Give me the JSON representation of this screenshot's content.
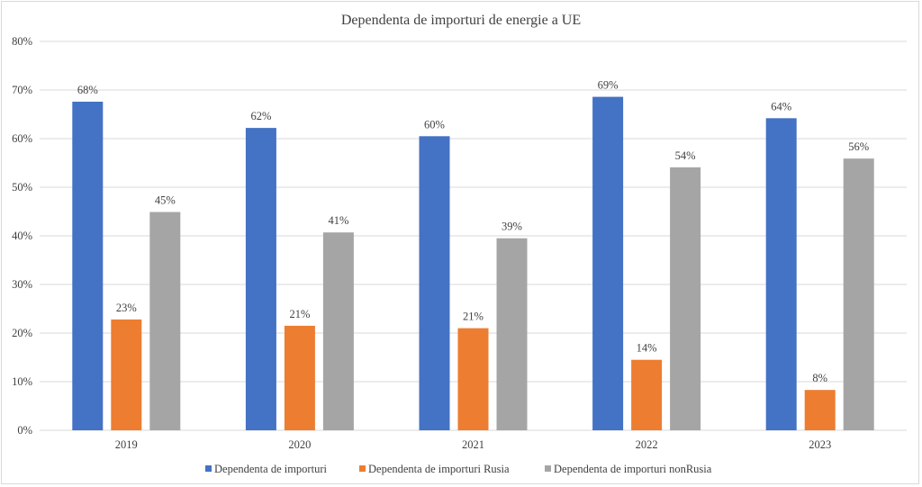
{
  "chart_data": {
    "type": "bar",
    "title": "Dependenta de importuri de energie a UE",
    "categories": [
      "2019",
      "2020",
      "2021",
      "2022",
      "2023"
    ],
    "series": [
      {
        "name": "Dependenta de importuri",
        "color": "#4472c4",
        "values": [
          0.676,
          0.622,
          0.605,
          0.686,
          0.642
        ],
        "labels": [
          "68%",
          "62%",
          "60%",
          "69%",
          "64%"
        ]
      },
      {
        "name": "Dependenta de importuri Rusia",
        "color": "#ed7d31",
        "values": [
          0.228,
          0.215,
          0.21,
          0.145,
          0.083
        ],
        "labels": [
          "23%",
          "21%",
          "21%",
          "14%",
          "8%"
        ]
      },
      {
        "name": "Dependenta de importuri nonRusia",
        "color": "#a5a5a5",
        "values": [
          0.449,
          0.407,
          0.395,
          0.541,
          0.559
        ],
        "labels": [
          "45%",
          "41%",
          "39%",
          "54%",
          "56%"
        ]
      }
    ],
    "ylim": [
      0,
      0.8
    ],
    "yticks": [
      "0%",
      "10%",
      "20%",
      "30%",
      "40%",
      "50%",
      "60%",
      "70%",
      "80%"
    ],
    "grid": true,
    "legend": "bottom"
  }
}
